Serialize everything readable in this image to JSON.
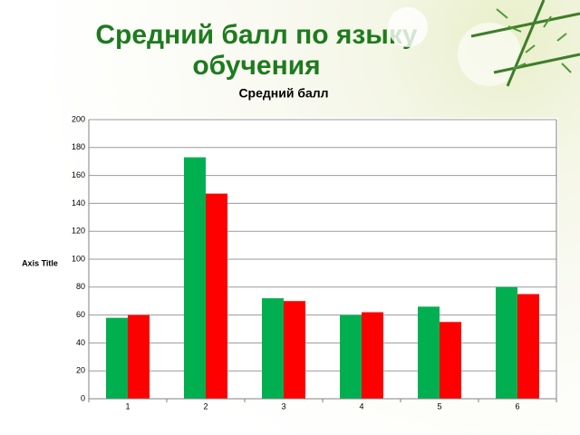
{
  "slide": {
    "title": "Средний балл по языку обучения"
  },
  "chart_data": {
    "type": "bar",
    "title": "Средний балл",
    "y_label": "Axis Title",
    "categories": [
      "1",
      "2",
      "3",
      "4",
      "5",
      "6"
    ],
    "series": [
      {
        "color": "#00b050",
        "values": [
          58,
          173,
          72,
          60,
          66,
          80
        ]
      },
      {
        "color": "#ff0000",
        "values": [
          60,
          147,
          70,
          62,
          55,
          75
        ]
      }
    ],
    "ylim": [
      0,
      200
    ],
    "yticks": [
      0,
      20,
      40,
      60,
      80,
      100,
      120,
      140,
      160,
      180,
      200
    ],
    "grid": true
  }
}
